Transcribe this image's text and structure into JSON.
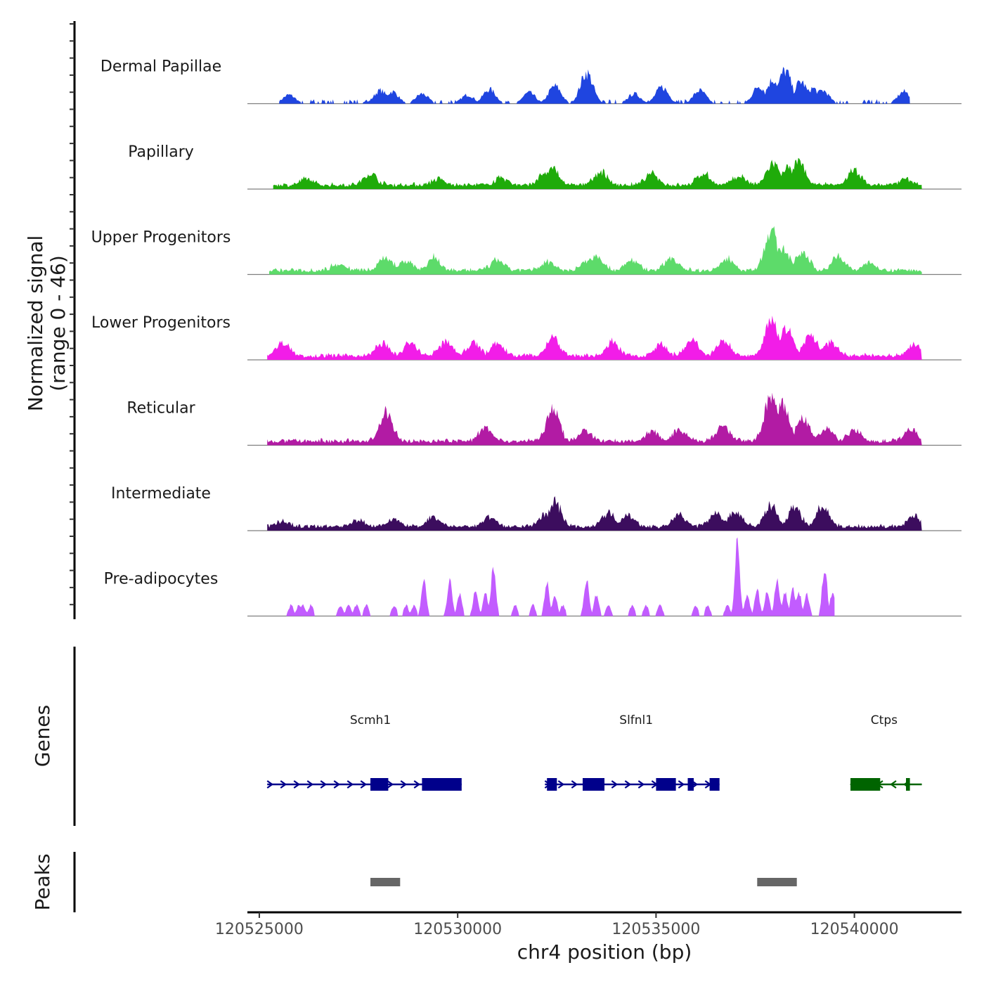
{
  "chart_data": {
    "type": "area",
    "title": "",
    "xlabel": "chr4 position (bp)",
    "ylabel": "Normalized signal",
    "ylabel_range": "(range 0 - 46)",
    "ylim": [
      0,
      46
    ],
    "xlim": [
      120524700,
      120542700
    ],
    "xticks": [
      120525000,
      120530000,
      120535000,
      120540000
    ],
    "xtick_labels": [
      "120525000",
      "120530000",
      "120535000",
      "120540000"
    ],
    "series": [
      {
        "name": "Dermal Papillae",
        "color": "#1f45e0",
        "style": "sparse",
        "range": [
          120525500,
          120541400
        ],
        "peaks": [
          [
            120525750,
            8
          ],
          [
            120528050,
            12
          ],
          [
            120528350,
            11
          ],
          [
            120529100,
            9
          ],
          [
            120530250,
            8
          ],
          [
            120530800,
            13
          ],
          [
            120531800,
            10
          ],
          [
            120532450,
            16
          ],
          [
            120533250,
            28
          ],
          [
            120534450,
            9
          ],
          [
            120535150,
            15
          ],
          [
            120536100,
            12
          ],
          [
            120537600,
            16
          ],
          [
            120537950,
            22
          ],
          [
            120538250,
            30
          ],
          [
            120538650,
            20
          ],
          [
            120538950,
            14
          ],
          [
            120539200,
            12
          ],
          [
            120541250,
            11
          ]
        ]
      },
      {
        "name": "Papillary",
        "color": "#1fab0a",
        "style": "dense",
        "range": [
          120525350,
          120541700
        ],
        "peaks": [
          [
            120526200,
            5
          ],
          [
            120527800,
            10
          ],
          [
            120529500,
            5
          ],
          [
            120531100,
            6
          ],
          [
            120532200,
            10
          ],
          [
            120532400,
            14
          ],
          [
            120533600,
            12
          ],
          [
            120534900,
            10
          ],
          [
            120536200,
            10
          ],
          [
            120537100,
            8
          ],
          [
            120537950,
            19
          ],
          [
            120538300,
            15
          ],
          [
            120538600,
            20
          ],
          [
            120540000,
            13
          ],
          [
            120541300,
            5
          ]
        ]
      },
      {
        "name": "Upper Progenitors",
        "color": "#5ddb6a",
        "style": "dense",
        "range": [
          120525250,
          120541700
        ],
        "peaks": [
          [
            120527000,
            6
          ],
          [
            120528200,
            12
          ],
          [
            120528700,
            9
          ],
          [
            120529400,
            11
          ],
          [
            120531000,
            9
          ],
          [
            120532300,
            8
          ],
          [
            120533300,
            10
          ],
          [
            120533500,
            14
          ],
          [
            120534400,
            9
          ],
          [
            120535400,
            11
          ],
          [
            120536800,
            10
          ],
          [
            120537900,
            35
          ],
          [
            120538200,
            20
          ],
          [
            120538700,
            16
          ],
          [
            120539600,
            12
          ],
          [
            120540400,
            7
          ]
        ]
      },
      {
        "name": "Lower Progenitors",
        "color": "#f21de8",
        "style": "dense",
        "range": [
          120525200,
          120541700
        ],
        "peaks": [
          [
            120525600,
            12
          ],
          [
            120528100,
            11
          ],
          [
            120528800,
            11
          ],
          [
            120529700,
            13
          ],
          [
            120530400,
            12
          ],
          [
            120531000,
            11
          ],
          [
            120532400,
            17
          ],
          [
            120533900,
            12
          ],
          [
            120535100,
            10
          ],
          [
            120535900,
            13
          ],
          [
            120536700,
            14
          ],
          [
            120537900,
            35
          ],
          [
            120538300,
            25
          ],
          [
            120538900,
            18
          ],
          [
            120539400,
            12
          ],
          [
            120541500,
            10
          ]
        ]
      },
      {
        "name": "Reticular",
        "color": "#b21ba4",
        "style": "dense",
        "range": [
          120525200,
          120541700
        ],
        "peaks": [
          [
            120528200,
            25
          ],
          [
            120530700,
            13
          ],
          [
            120532400,
            28
          ],
          [
            120533200,
            10
          ],
          [
            120534900,
            9
          ],
          [
            120535600,
            10
          ],
          [
            120536700,
            13
          ],
          [
            120537900,
            40
          ],
          [
            120538200,
            32
          ],
          [
            120538700,
            20
          ],
          [
            120539300,
            12
          ],
          [
            120540000,
            10
          ],
          [
            120541400,
            11
          ]
        ]
      },
      {
        "name": "Intermediate",
        "color": "#3c0d5e",
        "style": "dense",
        "range": [
          120525200,
          120541700
        ],
        "peaks": [
          [
            120525600,
            5
          ],
          [
            120527500,
            6
          ],
          [
            120528400,
            7
          ],
          [
            120529400,
            8
          ],
          [
            120530800,
            9
          ],
          [
            120532200,
            10
          ],
          [
            120532450,
            22
          ],
          [
            120533800,
            12
          ],
          [
            120534300,
            11
          ],
          [
            120535600,
            10
          ],
          [
            120536500,
            12
          ],
          [
            120537000,
            13
          ],
          [
            120537900,
            18
          ],
          [
            120538500,
            17
          ],
          [
            120539200,
            18
          ],
          [
            120541500,
            10
          ]
        ]
      },
      {
        "name": "Pre-adipocytes",
        "color": "#c25cff",
        "style": "spikes",
        "range": [
          120525600,
          120539500
        ],
        "peaks": [
          [
            120525800,
            10
          ],
          [
            120526000,
            10
          ],
          [
            120526100,
            10
          ],
          [
            120526300,
            10
          ],
          [
            120527050,
            10
          ],
          [
            120527250,
            10
          ],
          [
            120527450,
            10
          ],
          [
            120527700,
            10
          ],
          [
            120528400,
            10
          ],
          [
            120528700,
            10
          ],
          [
            120528900,
            10
          ],
          [
            120529150,
            33
          ],
          [
            120529800,
            32
          ],
          [
            120530050,
            20
          ],
          [
            120530450,
            23
          ],
          [
            120530700,
            22
          ],
          [
            120530900,
            45
          ],
          [
            120531450,
            10
          ],
          [
            120531900,
            10
          ],
          [
            120532250,
            30
          ],
          [
            120532450,
            18
          ],
          [
            120532650,
            10
          ],
          [
            120533250,
            33
          ],
          [
            120533500,
            20
          ],
          [
            120533800,
            10
          ],
          [
            120534400,
            10
          ],
          [
            120534750,
            10
          ],
          [
            120535100,
            10
          ],
          [
            120536000,
            10
          ],
          [
            120536300,
            10
          ],
          [
            120536800,
            10
          ],
          [
            120537050,
            68
          ],
          [
            120537300,
            20
          ],
          [
            120537550,
            24
          ],
          [
            120537800,
            22
          ],
          [
            120538050,
            35
          ],
          [
            120538250,
            22
          ],
          [
            120538450,
            24
          ],
          [
            120538600,
            22
          ],
          [
            120538800,
            20
          ],
          [
            120539250,
            45
          ],
          [
            120539450,
            22
          ],
          [
            120539600,
            22
          ],
          [
            120539750,
            25
          ]
        ]
      }
    ],
    "genes": [
      {
        "name": "Scmh1",
        "strand": "+",
        "color": "#00008b",
        "start": 120525200,
        "end": 120530100,
        "label_pos": 120527800,
        "exons": [
          [
            120527800,
            120528250
          ],
          [
            120529100,
            120530100
          ]
        ]
      },
      {
        "name": "Slfnl1",
        "strand": "+",
        "color": "#00008b",
        "start": 120532200,
        "end": 120536600,
        "label_pos": 120534500,
        "exons": [
          [
            120532250,
            120532500
          ],
          [
            120533150,
            120533700
          ],
          [
            120535000,
            120535500
          ],
          [
            120535800,
            120535950
          ],
          [
            120536350,
            120536600
          ]
        ]
      },
      {
        "name": "Ctps",
        "strand": "-",
        "color": "#006400",
        "start": 120539900,
        "end": 120541700,
        "label_pos": 120540750,
        "exons": [
          [
            120539900,
            120540650
          ],
          [
            120541300,
            120541400
          ]
        ]
      }
    ],
    "peaks": [
      {
        "start": 120527800,
        "end": 120528550
      },
      {
        "start": 120537550,
        "end": 120538550
      }
    ]
  },
  "panels": {
    "genes_label": "Genes",
    "peaks_label": "Peaks"
  }
}
